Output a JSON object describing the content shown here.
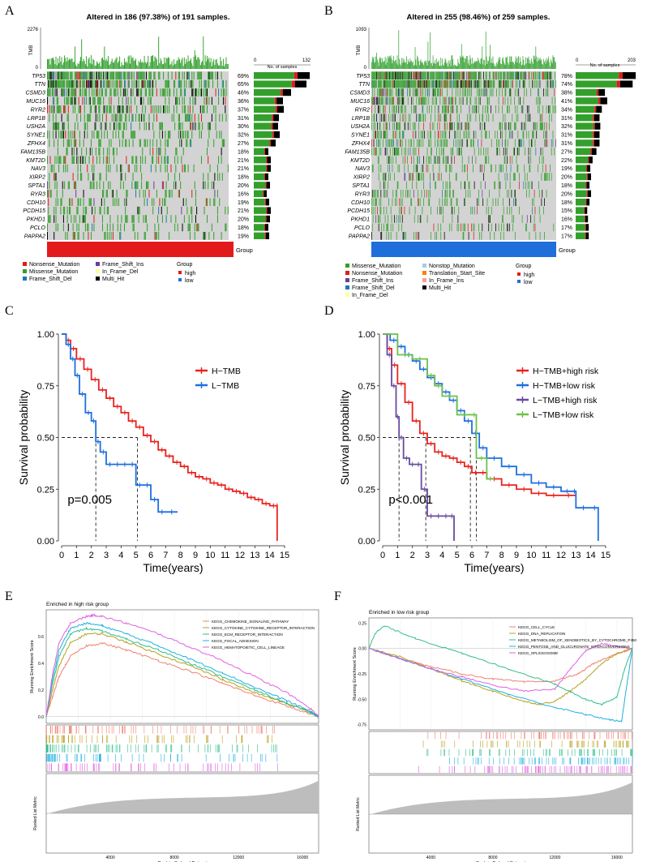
{
  "panels": {
    "A": {
      "letter": "A",
      "title": "Altered in 186 (97.38%) of 191 samples.",
      "tmb_label": "TMB",
      "tmb_max": "2276",
      "tmb_min": "0",
      "bar_axis_min": "0",
      "bar_axis_max": "132",
      "bar_axis_label": "No. of samples",
      "genes": [
        "TP53",
        "TTN",
        "CSMD3",
        "MUC16",
        "RYR2",
        "LRP1B",
        "USH2A",
        "SYNE1",
        "ZFHX4",
        "FAM135B",
        "KMT2D",
        "NAV3",
        "XIRP2",
        "SPTA1",
        "RYR3",
        "CDH10",
        "PCDH15",
        "PKHD1",
        "PCLO",
        "PAPPA2"
      ],
      "percents": [
        "69%",
        "65%",
        "46%",
        "36%",
        "37%",
        "31%",
        "30%",
        "32%",
        "27%",
        "18%",
        "21%",
        "21%",
        "18%",
        "20%",
        "16%",
        "19%",
        "21%",
        "20%",
        "18%",
        "19%"
      ],
      "group_label": "Group",
      "legend_items": [
        "Nonsense_Mutation",
        "Missense_Mutation",
        "Frame_Shift_Del",
        "Frame_Shift_Ins",
        "In_Frame_Del",
        "Multi_Hit"
      ],
      "legend_colors": [
        "#e31a1c",
        "#33a02c",
        "#1f78b4",
        "#6a3d9a",
        "#ffff99",
        "#000000"
      ],
      "group_title": "Group",
      "group_items": [
        "high",
        "low"
      ],
      "group_colors": [
        "#e31a1c",
        "#1e6fd9"
      ],
      "group_bar_color": "#e31a1c"
    },
    "B": {
      "letter": "B",
      "title": "Altered in 255 (98.46%) of 259 samples.",
      "tmb_label": "TMB",
      "tmb_max": "1093",
      "tmb_min": "0",
      "bar_axis_min": "0",
      "bar_axis_max": "203",
      "bar_axis_label": "No. of samples",
      "genes": [
        "TP53",
        "TTN",
        "CSMD3",
        "MUC16",
        "RYR2",
        "LRP1B",
        "USH2A",
        "SYNE1",
        "ZFHX4",
        "FAM135B",
        "KMT2D",
        "NAV3",
        "XIRP2",
        "SPTA1",
        "RYR3",
        "CDH10",
        "PCDH15",
        "PKHD1",
        "PCLO",
        "PAPPA2"
      ],
      "percents": [
        "78%",
        "74%",
        "38%",
        "41%",
        "34%",
        "31%",
        "32%",
        "31%",
        "31%",
        "27%",
        "22%",
        "19%",
        "20%",
        "18%",
        "20%",
        "18%",
        "15%",
        "16%",
        "17%",
        "17%"
      ],
      "group_label": "Group",
      "legend_items": [
        "Missense_Mutation",
        "Nonsense_Mutation",
        "Frame_Shift_Ins",
        "Frame_Shift_Del",
        "In_Frame_Del",
        "Nonstop_Mutation",
        "Translation_Start_Site",
        "In_Frame_Ins",
        "Multi_Hit"
      ],
      "legend_colors": [
        "#33a02c",
        "#e31a1c",
        "#6a3d9a",
        "#1f78b4",
        "#ffff99",
        "#a6cee3",
        "#ff7f00",
        "#fb9a99",
        "#000000"
      ],
      "group_title": "Group",
      "group_items": [
        "high",
        "low"
      ],
      "group_colors": [
        "#e31a1c",
        "#1e6fd9"
      ],
      "group_bar_color": "#1e6fd9"
    },
    "C": {
      "letter": "C",
      "p_text": "p=0.005",
      "legend": [
        "H−TMB",
        "L−TMB"
      ],
      "colors": [
        "#e8231f",
        "#1f6fe0"
      ]
    },
    "D": {
      "letter": "D",
      "p_text": "p<0.001",
      "legend": [
        "H−TMB+high risk",
        "H−TMB+low risk",
        "L−TMB+high risk",
        "L−TMB+low risk"
      ],
      "colors": [
        "#e8231f",
        "#1f6fe0",
        "#6a4aa0",
        "#6cc24a"
      ]
    },
    "E": {
      "letter": "E",
      "title": "Enriched in high risk group",
      "legend": [
        "KEGG_CHEMOKINE_SIGNALING_PATHWAY",
        "KEGG_CYTOKINE_CYTOKINE_RECEPTOR_INTERACTION",
        "KEGG_ECM_RECEPTOR_INTERACTION",
        "KEGG_FOCAL_ADHESION",
        "KEGG_HEMATOPOIETIC_CELL_LINEAGE"
      ],
      "colors": [
        "#f08070",
        "#b8a020",
        "#2fbf8a",
        "#20b0e0",
        "#e060e0"
      ]
    },
    "F": {
      "letter": "F",
      "title": "Enriched in low risk group",
      "legend": [
        "KEGG_CELL_CYCLE",
        "KEGG_DNA_REPLICATION",
        "KEGG_METABOLISM_OF_XENOBIOTICS_BY_CYTOCHROME_P450",
        "KEGG_PENTOSE_AND_GLUCURONATE_INTERCONVERSIONS",
        "KEGG_SPLICEOSOME"
      ],
      "colors": [
        "#f08070",
        "#b8a020",
        "#2fbf8a",
        "#20b0e0",
        "#e060e0"
      ]
    }
  },
  "chart_data": [
    {
      "type": "line",
      "panel": "C",
      "title": "",
      "xlabel": "Time(years)",
      "ylabel": "Survival probability",
      "xlim": [
        0,
        15
      ],
      "ylim": [
        0,
        1
      ],
      "x_ticks": [
        "0",
        "1",
        "2",
        "3",
        "4",
        "5",
        "6",
        "7",
        "8",
        "9",
        "10",
        "11",
        "12",
        "13",
        "14",
        "15"
      ],
      "y_ticks": [
        "0.00",
        "0.25",
        "0.50",
        "0.75",
        "1.00"
      ],
      "series": [
        {
          "name": "H−TMB",
          "x": [
            0,
            0.3,
            0.6,
            1,
            1.5,
            2,
            2.5,
            3,
            3.5,
            4,
            4.5,
            5,
            5.5,
            6,
            6.5,
            7,
            7.5,
            8,
            8.5,
            9,
            9.5,
            10,
            10.5,
            11,
            11.5,
            12,
            12.5,
            13,
            13.5,
            14,
            14.5,
            14.5
          ],
          "y": [
            1,
            0.97,
            0.93,
            0.88,
            0.83,
            0.78,
            0.73,
            0.69,
            0.65,
            0.62,
            0.58,
            0.55,
            0.51,
            0.48,
            0.44,
            0.41,
            0.38,
            0.36,
            0.33,
            0.31,
            0.3,
            0.28,
            0.27,
            0.25,
            0.24,
            0.23,
            0.21,
            0.2,
            0.18,
            0.17,
            0.17,
            0
          ]
        },
        {
          "name": "L−TMB",
          "x": [
            0,
            0.3,
            0.6,
            0.9,
            1.2,
            1.6,
            2,
            2.3,
            2.6,
            3,
            3.5,
            4,
            4.5,
            5,
            5.5,
            6,
            6.5,
            7,
            7.8
          ],
          "y": [
            1,
            0.95,
            0.88,
            0.8,
            0.71,
            0.62,
            0.58,
            0.48,
            0.43,
            0.37,
            0.37,
            0.37,
            0.37,
            0.27,
            0.27,
            0.2,
            0.14,
            0.14,
            0.14
          ]
        }
      ],
      "median_lines": [
        2.3,
        5.1
      ],
      "p_value": "p=0.005"
    },
    {
      "type": "line",
      "panel": "D",
      "title": "",
      "xlabel": "Time(years)",
      "ylabel": "Survival probability",
      "xlim": [
        0,
        15
      ],
      "ylim": [
        0,
        1
      ],
      "x_ticks": [
        "0",
        "1",
        "2",
        "3",
        "4",
        "5",
        "6",
        "7",
        "8",
        "9",
        "10",
        "11",
        "12",
        "13",
        "14",
        "15"
      ],
      "y_ticks": [
        "0.00",
        "0.25",
        "0.50",
        "0.75",
        "1.00"
      ],
      "series": [
        {
          "name": "H−TMB+high risk",
          "x": [
            0,
            0.3,
            0.6,
            1,
            1.5,
            2,
            2.5,
            3,
            3.5,
            4,
            4.5,
            5,
            5.5,
            6,
            6.5,
            7,
            8,
            9,
            10,
            11,
            12,
            13
          ],
          "y": [
            1,
            0.93,
            0.85,
            0.76,
            0.67,
            0.58,
            0.52,
            0.47,
            0.43,
            0.41,
            0.4,
            0.38,
            0.36,
            0.33,
            0.33,
            0.3,
            0.27,
            0.25,
            0.23,
            0.22,
            0.22,
            0.22
          ]
        },
        {
          "name": "H−TMB+low risk",
          "x": [
            0,
            0.5,
            1,
            1.5,
            2,
            2.5,
            3,
            3.5,
            4,
            4.5,
            5,
            5.5,
            6,
            6.5,
            7,
            8,
            9,
            10,
            11,
            12,
            12.8,
            13,
            14,
            14.5
          ],
          "y": [
            1,
            0.97,
            0.94,
            0.9,
            0.87,
            0.83,
            0.79,
            0.76,
            0.72,
            0.68,
            0.63,
            0.58,
            0.52,
            0.45,
            0.4,
            0.36,
            0.32,
            0.28,
            0.26,
            0.24,
            0.24,
            0.16,
            0.16,
            0
          ]
        },
        {
          "name": "L−TMB+high risk",
          "x": [
            0,
            0.3,
            0.6,
            0.9,
            1.1,
            1.4,
            1.8,
            2.2,
            2.6,
            3,
            3.5,
            4,
            4.5,
            4.8
          ],
          "y": [
            1,
            0.9,
            0.75,
            0.6,
            0.5,
            0.4,
            0.37,
            0.37,
            0.25,
            0.12,
            0.12,
            0.12,
            0.12,
            0
          ]
        },
        {
          "name": "L−TMB+low risk",
          "x": [
            0,
            1,
            2,
            3,
            3.5,
            4,
            5,
            6,
            6.3,
            7,
            7.5
          ],
          "y": [
            1,
            0.9,
            0.88,
            0.8,
            0.75,
            0.7,
            0.61,
            0.61,
            0.4,
            0.3,
            0.3
          ]
        }
      ],
      "median_lines": [
        1.1,
        2.9,
        5.9,
        6.3
      ],
      "p_value": "p<0.001"
    },
    {
      "type": "line",
      "panel": "E",
      "title": "Enriched in high risk group",
      "xlabel": "Rank in Ordered Dataset",
      "ylabel": "Running Enrichment Score",
      "ylabel2": "Ranked List Metric",
      "x_ticks": [
        "4000",
        "8000",
        "12000",
        "16000"
      ],
      "y_ticks": [
        "0.0",
        "0.2",
        "0.4",
        "0.6"
      ],
      "x_max": 17000,
      "y_range": [
        -0.05,
        0.8
      ],
      "series": [
        {
          "name": "KEGG_CHEMOKINE_SIGNALING_PATHWAY",
          "x": [
            0,
            400,
            800,
            1500,
            2500,
            3500,
            5000,
            7000,
            9000,
            11000,
            13000,
            15000,
            16500,
            17000
          ],
          "y": [
            0,
            0.15,
            0.3,
            0.45,
            0.53,
            0.55,
            0.5,
            0.42,
            0.34,
            0.25,
            0.16,
            0.08,
            0.02,
            0
          ]
        },
        {
          "name": "KEGG_CYTOKINE_CYTOKINE_RECEPTOR_INTERACTION",
          "x": [
            0,
            400,
            800,
            1500,
            2500,
            3500,
            5000,
            7000,
            9000,
            11000,
            13000,
            15000,
            16500,
            17000
          ],
          "y": [
            0,
            0.2,
            0.38,
            0.55,
            0.62,
            0.62,
            0.56,
            0.47,
            0.38,
            0.28,
            0.18,
            0.1,
            0.03,
            0
          ]
        },
        {
          "name": "KEGG_ECM_RECEPTOR_INTERACTION",
          "x": [
            0,
            400,
            800,
            1500,
            2500,
            3500,
            5000,
            7000,
            9000,
            11000,
            13000,
            15000,
            16500,
            17000
          ],
          "y": [
            0,
            0.25,
            0.45,
            0.62,
            0.66,
            0.64,
            0.58,
            0.5,
            0.4,
            0.3,
            0.2,
            0.1,
            0.03,
            0
          ]
        },
        {
          "name": "KEGG_FOCAL_ADHESION",
          "x": [
            0,
            400,
            800,
            1500,
            2500,
            3500,
            5000,
            7000,
            9000,
            11000,
            13000,
            15000,
            16500,
            17000
          ],
          "y": [
            0,
            0.28,
            0.5,
            0.66,
            0.7,
            0.68,
            0.62,
            0.53,
            0.43,
            0.33,
            0.22,
            0.12,
            0.04,
            0
          ]
        },
        {
          "name": "KEGG_HEMATOPOIETIC_CELL_LINEAGE",
          "x": [
            0,
            400,
            800,
            1500,
            2500,
            3000,
            3500,
            5000,
            7000,
            9000,
            11000,
            13000,
            15000,
            16500,
            17000
          ],
          "y": [
            0,
            0.32,
            0.55,
            0.7,
            0.75,
            0.76,
            0.75,
            0.7,
            0.62,
            0.52,
            0.42,
            0.3,
            0.18,
            0.06,
            0
          ]
        }
      ]
    },
    {
      "type": "line",
      "panel": "F",
      "title": "Enriched in low risk group",
      "xlabel": "Rank in Ordered Dataset",
      "ylabel": "Running Enrichment Score",
      "ylabel2": "Ranked List Metric",
      "x_ticks": [
        "4000",
        "8000",
        "12000",
        "16000"
      ],
      "y_ticks": [
        "0.25",
        "0.00",
        "-0.25",
        "-0.50",
        "-0.75"
      ],
      "x_max": 17000,
      "y_range": [
        -0.8,
        0.3
      ],
      "series": [
        {
          "name": "KEGG_CELL_CYCLE",
          "x": [
            0,
            2000,
            4000,
            6000,
            8000,
            10000,
            12000,
            13500,
            14500,
            15500,
            16500,
            17000
          ],
          "y": [
            0,
            -0.1,
            -0.18,
            -0.25,
            -0.3,
            -0.33,
            -0.32,
            -0.25,
            -0.15,
            -0.08,
            -0.03,
            0
          ]
        },
        {
          "name": "KEGG_DNA_REPLICATION",
          "x": [
            0,
            2000,
            4000,
            6000,
            8000,
            10000,
            11000,
            12000,
            13000,
            14000,
            15000,
            16000,
            17000
          ],
          "y": [
            0,
            -0.08,
            -0.2,
            -0.32,
            -0.42,
            -0.52,
            -0.55,
            -0.52,
            -0.42,
            -0.3,
            -0.15,
            -0.05,
            0
          ]
        },
        {
          "name": "KEGG_METABOLISM_OF_XENOBIOTICS_BY_CYTOCHROME_P450",
          "x": [
            0,
            400,
            1000,
            3000,
            6000,
            9000,
            12000,
            14000,
            15000,
            16000,
            16500,
            17000
          ],
          "y": [
            0,
            0.15,
            0.22,
            0.1,
            -0.05,
            -0.2,
            -0.35,
            -0.5,
            -0.55,
            -0.48,
            -0.2,
            0
          ]
        },
        {
          "name": "KEGG_PENTOSE_AND_GLUCURONATE_INTERCONVERSIONS",
          "x": [
            0,
            1000,
            3000,
            6000,
            9000,
            12000,
            14000,
            15500,
            16300,
            16600,
            17000
          ],
          "y": [
            0,
            -0.05,
            -0.15,
            -0.3,
            -0.45,
            -0.58,
            -0.65,
            -0.7,
            -0.72,
            -0.4,
            0
          ]
        },
        {
          "name": "KEGG_SPLICEOSOME",
          "x": [
            0,
            2000,
            4000,
            6000,
            8000,
            10000,
            12000,
            13000,
            14000,
            15000,
            16000,
            17000
          ],
          "y": [
            0,
            -0.1,
            -0.2,
            -0.28,
            -0.36,
            -0.42,
            -0.4,
            -0.2,
            -0.02,
            0.05,
            0.02,
            0
          ]
        }
      ]
    }
  ]
}
